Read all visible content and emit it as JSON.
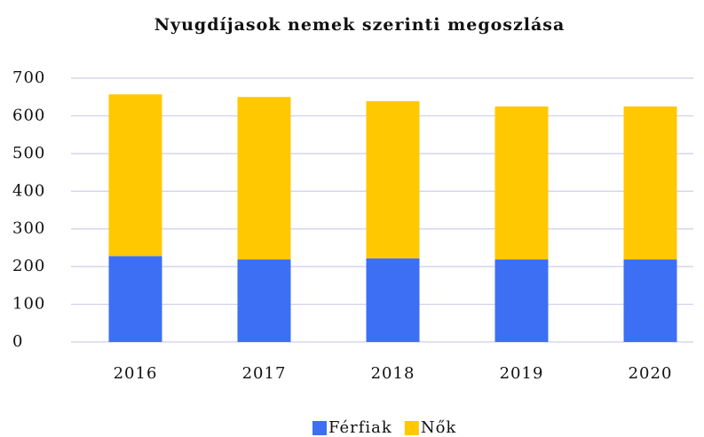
{
  "chart_data": {
    "type": "stacked_bar",
    "title": "Nyugdíjasok nemek szerinti megoszlása",
    "categories": [
      "2016",
      "2017",
      "2018",
      "2019",
      "2020"
    ],
    "series": [
      {
        "name": "Férfiak",
        "color": "#3d6ff5",
        "values": [
          228,
          219,
          222,
          219,
          219
        ]
      },
      {
        "name": "Nők",
        "color": "#ffc800",
        "values": [
          429,
          431,
          417,
          406,
          406
        ]
      }
    ],
    "ylim": [
      0,
      700
    ],
    "yticks": [
      0,
      100,
      200,
      300,
      400,
      500,
      600,
      700
    ],
    "grid": true,
    "legend": "bottom"
  }
}
